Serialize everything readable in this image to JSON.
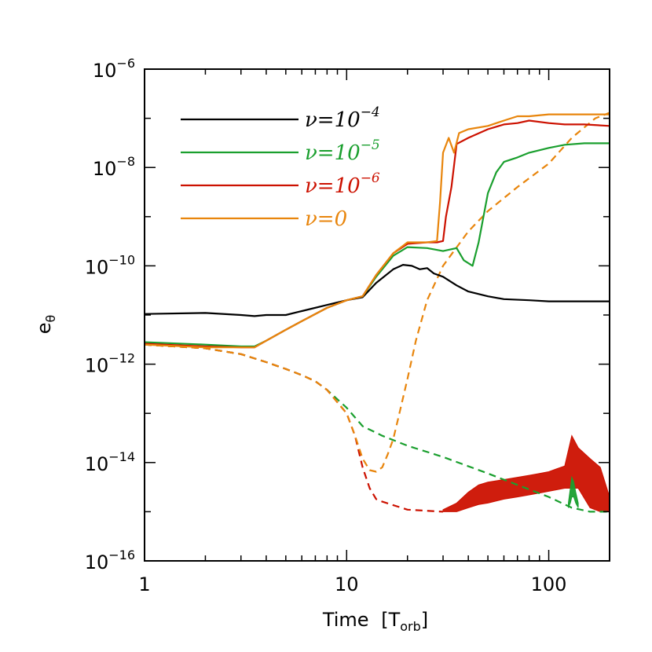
{
  "chart_data": {
    "type": "line",
    "title": "",
    "xlabel": "Time",
    "xlabel_unit": "T",
    "xlabel_unit_sub": "orb",
    "ylabel": "e",
    "ylabel_sub": "θ",
    "xscale": "log",
    "yscale": "log",
    "xlim": [
      1,
      200
    ],
    "ylim": [
      1e-16,
      1e-06
    ],
    "grid": false,
    "legend_position": "top-left",
    "x_ticks": [
      {
        "value": 1,
        "label": "1"
      },
      {
        "value": 10,
        "label": "10"
      },
      {
        "value": 100,
        "label": "100"
      }
    ],
    "y_ticks": [
      {
        "value": 1e-16,
        "base": "10",
        "exp": "−16"
      },
      {
        "value": 1e-14,
        "base": "10",
        "exp": "−14"
      },
      {
        "value": 1e-12,
        "base": "10",
        "exp": "−12"
      },
      {
        "value": 1e-10,
        "base": "10",
        "exp": "−10"
      },
      {
        "value": 1e-08,
        "base": "10",
        "exp": "−8"
      },
      {
        "value": 1e-06,
        "base": "10",
        "exp": "−6"
      }
    ],
    "series": [
      {
        "name": "ν=10^-4",
        "legend_prefix": "ν=10",
        "legend_exp": "−4",
        "color": "#000000",
        "style": "solid",
        "x": [
          1,
          2,
          3,
          3.5,
          4,
          5,
          6,
          8,
          10,
          12,
          14,
          17,
          19,
          21,
          23,
          25,
          27,
          30,
          35,
          40,
          50,
          60,
          80,
          100,
          120,
          150,
          200
        ],
        "y": [
          1.05e-11,
          1.1e-11,
          1e-11,
          9.5e-12,
          1e-11,
          1e-11,
          1.2e-11,
          1.6e-11,
          2e-11,
          2.3e-11,
          4.5e-11,
          8.5e-11,
          1.05e-10,
          1e-10,
          8.5e-11,
          9e-11,
          7e-11,
          6e-11,
          4e-11,
          3e-11,
          2.4e-11,
          2.1e-11,
          2e-11,
          1.9e-11,
          1.9e-11,
          1.9e-11,
          1.9e-11
        ]
      },
      {
        "name": "ν=10^-5",
        "legend_prefix": "ν=10",
        "legend_exp": "−5",
        "color": "#1a9f2e",
        "style": "solid",
        "x": [
          1,
          2,
          3,
          3.5,
          4,
          5,
          6,
          8,
          10,
          12,
          14,
          17,
          20,
          25,
          30,
          35,
          38,
          42,
          45,
          50,
          55,
          60,
          70,
          80,
          100,
          120,
          150,
          200
        ],
        "y": [
          2.8e-12,
          2.5e-12,
          2.3e-12,
          2.3e-12,
          3e-12,
          5e-12,
          7.5e-12,
          1.4e-11,
          2e-11,
          2.4e-11,
          6e-11,
          1.6e-10,
          2.4e-10,
          2.3e-10,
          2e-10,
          2.3e-10,
          1.3e-10,
          1e-10,
          3e-10,
          3e-09,
          8e-09,
          1.3e-08,
          1.6e-08,
          2e-08,
          2.5e-08,
          2.9e-08,
          3.1e-08,
          3.1e-08
        ]
      },
      {
        "name": "ν=10^-6",
        "legend_prefix": "ν=10",
        "legend_exp": "−6",
        "color": "#cc1100",
        "style": "solid",
        "x": [
          1,
          2,
          3,
          3.5,
          4,
          5,
          6,
          8,
          10,
          12,
          14,
          17,
          20,
          25,
          28,
          30,
          31,
          33,
          35,
          40,
          50,
          60,
          70,
          80,
          100,
          120,
          150,
          200
        ],
        "y": [
          2.6e-12,
          2.3e-12,
          2.2e-12,
          2.2e-12,
          3e-12,
          5e-12,
          7.5e-12,
          1.4e-11,
          2e-11,
          2.4e-11,
          6.5e-11,
          1.8e-10,
          2.8e-10,
          3e-10,
          3e-10,
          3.2e-10,
          1e-09,
          4e-09,
          3e-08,
          4e-08,
          6e-08,
          7.5e-08,
          8e-08,
          9e-08,
          8e-08,
          7.5e-08,
          7.5e-08,
          7e-08
        ]
      },
      {
        "name": "ν=0",
        "legend_prefix": "ν=0",
        "legend_exp": "",
        "color": "#e8850c",
        "style": "solid",
        "x": [
          1,
          2,
          3,
          3.5,
          4,
          5,
          6,
          8,
          10,
          12,
          14,
          17,
          20,
          25,
          28,
          29,
          30,
          32,
          34,
          36,
          40,
          50,
          60,
          70,
          80,
          100,
          120,
          150,
          200
        ],
        "y": [
          2.5e-12,
          2.2e-12,
          2.2e-12,
          2.2e-12,
          3e-12,
          5e-12,
          7.5e-12,
          1.4e-11,
          2e-11,
          2.4e-11,
          6.5e-11,
          1.8e-10,
          3e-10,
          3e-10,
          3.2e-10,
          2e-09,
          2e-08,
          4e-08,
          2e-08,
          5e-08,
          6e-08,
          7e-08,
          9e-08,
          1.1e-07,
          1.1e-07,
          1.2e-07,
          1.2e-07,
          1.2e-07,
          1.2e-07
        ]
      },
      {
        "name": "ν=10^-5 (dashed)",
        "color": "#1a9f2e",
        "style": "dashed",
        "x": [
          1,
          2,
          3,
          4,
          5,
          6,
          7,
          8,
          10,
          12,
          15,
          20,
          30,
          50,
          70,
          100,
          130,
          160,
          200
        ],
        "y": [
          2.5e-12,
          2.1e-12,
          1.6e-12,
          1.1e-12,
          8e-13,
          6e-13,
          4.5e-13,
          3e-13,
          1.3e-13,
          5.5e-14,
          3.5e-14,
          2.2e-14,
          1.3e-14,
          6e-15,
          3.5e-15,
          2e-15,
          1.2e-15,
          1e-15,
          1e-15
        ]
      },
      {
        "name": "ν=10^-6 (dashed)",
        "color": "#cc1100",
        "style": "dashed",
        "x": [
          1,
          2,
          3,
          4,
          5,
          6,
          7,
          8,
          10,
          11,
          12,
          13,
          14,
          15,
          20,
          30
        ],
        "y": [
          2.5e-12,
          2.1e-12,
          1.6e-12,
          1.1e-12,
          8e-13,
          6e-13,
          4.5e-13,
          3e-13,
          1e-13,
          3.5e-14,
          8e-15,
          3e-15,
          1.8e-15,
          1.6e-15,
          1.1e-15,
          1e-15
        ]
      },
      {
        "name": "ν=0 (dashed)",
        "color": "#e8850c",
        "style": "dashed",
        "x": [
          1,
          2,
          3,
          4,
          5,
          6,
          7,
          8,
          10,
          11,
          12,
          13,
          14,
          15,
          16,
          17,
          18,
          20,
          22,
          25,
          30,
          40,
          50,
          70,
          100,
          130,
          170,
          200
        ],
        "y": [
          2.5e-12,
          2.1e-12,
          1.6e-12,
          1.1e-12,
          8e-13,
          6e-13,
          4.5e-13,
          3e-13,
          1e-13,
          3.5e-14,
          1.2e-14,
          7e-15,
          6.5e-15,
          8e-15,
          1.5e-14,
          3e-14,
          8e-14,
          5e-13,
          3e-12,
          2e-11,
          1e-10,
          5e-10,
          1.3e-09,
          4e-09,
          1.2e-08,
          4e-08,
          1e-07,
          1.3e-07
        ]
      },
      {
        "name": "ν=10^-6 (dashed, noise)",
        "color": "#cc1100",
        "style": "noise",
        "x": [
          30,
          35,
          40,
          45,
          50,
          60,
          70,
          80,
          90,
          100,
          110,
          120,
          130,
          140,
          160,
          180,
          200
        ],
        "lower": [
          1e-15,
          1e-15,
          1.2e-15,
          1.4e-15,
          1.5e-15,
          1.8e-15,
          2e-15,
          2.2e-15,
          2.4e-15,
          2.6e-15,
          2.8e-15,
          3e-15,
          3e-15,
          3e-15,
          1.2e-15,
          1e-15,
          1e-15
        ],
        "upper": [
          1.1e-15,
          1.5e-15,
          2.5e-15,
          3.5e-15,
          4e-15,
          4.5e-15,
          5e-15,
          5.5e-15,
          6e-15,
          6.5e-15,
          7.5e-15,
          8.5e-15,
          3.5e-14,
          2e-14,
          1.2e-14,
          8e-15,
          2e-15
        ]
      },
      {
        "name": "ν=10^-5 (dashed, spike)",
        "color": "#1a9f2e",
        "style": "noise",
        "x": [
          125,
          128,
          130,
          133,
          136,
          140
        ],
        "lower": [
          1.2e-15,
          1.5e-15,
          2e-15,
          2e-15,
          1.5e-15,
          1.2e-15
        ],
        "upper": [
          1.5e-15,
          3e-15,
          5e-15,
          4e-15,
          2.5e-15,
          1.5e-15
        ]
      }
    ]
  }
}
